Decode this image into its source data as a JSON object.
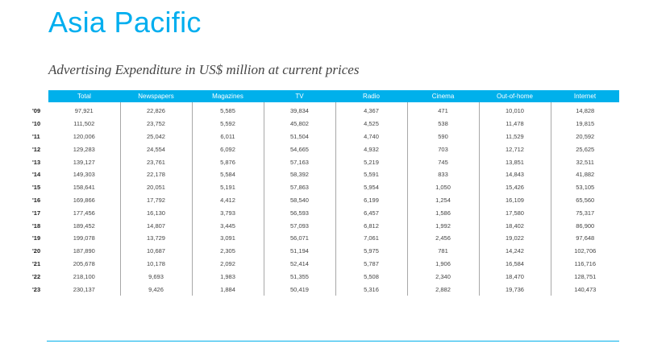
{
  "title": "Asia Pacific",
  "caption": "Advertising Expenditure in US$ million at current prices",
  "accent_color": "#00B0EB",
  "table": {
    "columns": [
      "Total",
      "Newspapers",
      "Magazines",
      "TV",
      "Radio",
      "Cinema",
      "Out-of-home",
      "Internet"
    ],
    "rows": [
      {
        "year": "'09",
        "values": [
          "97,921",
          "22,826",
          "5,585",
          "39,834",
          "4,367",
          "471",
          "10,010",
          "14,828"
        ]
      },
      {
        "year": "'10",
        "values": [
          "111,502",
          "23,752",
          "5,592",
          "45,802",
          "4,525",
          "538",
          "11,478",
          "19,815"
        ]
      },
      {
        "year": "'11",
        "values": [
          "120,006",
          "25,042",
          "6,011",
          "51,504",
          "4,740",
          "590",
          "11,529",
          "20,592"
        ]
      },
      {
        "year": "'12",
        "values": [
          "129,283",
          "24,554",
          "6,092",
          "54,665",
          "4,932",
          "703",
          "12,712",
          "25,625"
        ]
      },
      {
        "year": "'13",
        "values": [
          "139,127",
          "23,761",
          "5,876",
          "57,163",
          "5,219",
          "745",
          "13,851",
          "32,511"
        ]
      },
      {
        "year": "'14",
        "values": [
          "149,303",
          "22,178",
          "5,584",
          "58,392",
          "5,591",
          "833",
          "14,843",
          "41,882"
        ]
      },
      {
        "year": "'15",
        "values": [
          "158,641",
          "20,051",
          "5,191",
          "57,863",
          "5,954",
          "1,050",
          "15,426",
          "53,105"
        ]
      },
      {
        "year": "'16",
        "values": [
          "169,866",
          "17,792",
          "4,412",
          "58,540",
          "6,199",
          "1,254",
          "16,109",
          "65,560"
        ]
      },
      {
        "year": "'17",
        "values": [
          "177,456",
          "16,130",
          "3,793",
          "56,593",
          "6,457",
          "1,586",
          "17,580",
          "75,317"
        ]
      },
      {
        "year": "'18",
        "values": [
          "189,452",
          "14,807",
          "3,445",
          "57,093",
          "6,812",
          "1,992",
          "18,402",
          "86,900"
        ]
      },
      {
        "year": "'19",
        "values": [
          "199,078",
          "13,729",
          "3,091",
          "56,071",
          "7,061",
          "2,456",
          "19,022",
          "97,648"
        ]
      },
      {
        "year": "'20",
        "values": [
          "187,890",
          "10,687",
          "2,305",
          "51,194",
          "5,975",
          "781",
          "14,242",
          "102,706"
        ]
      },
      {
        "year": "'21",
        "values": [
          "205,678",
          "10,178",
          "2,092",
          "52,414",
          "5,787",
          "1,906",
          "16,584",
          "116,716"
        ]
      },
      {
        "year": "'22",
        "values": [
          "218,100",
          "9,693",
          "1,983",
          "51,355",
          "5,508",
          "2,340",
          "18,470",
          "128,751"
        ]
      },
      {
        "year": "'23",
        "values": [
          "230,137",
          "9,426",
          "1,884",
          "50,419",
          "5,316",
          "2,882",
          "19,736",
          "140,473"
        ]
      }
    ]
  }
}
